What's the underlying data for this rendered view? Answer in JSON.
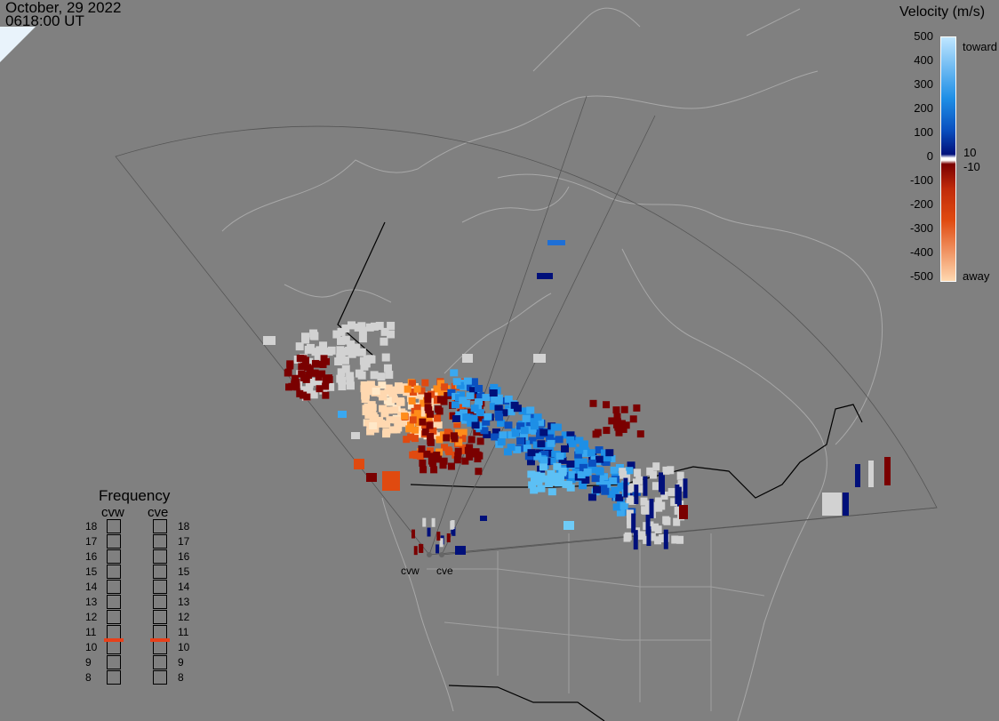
{
  "header": {
    "date": "October, 29 2022",
    "time": "0618:00 UT"
  },
  "colorscale": {
    "title": "Velocity (m/s)",
    "ticks": [
      "500",
      "400",
      "300",
      "200",
      "100",
      "0",
      "-100",
      "-200",
      "-300",
      "-400",
      "-500"
    ],
    "toward_label": "toward",
    "away_label": "away",
    "pos_threshold": "10",
    "neg_threshold": "-10",
    "colors": {
      "toward_light": "#bfe6ff",
      "toward_mid": "#1e8fe6",
      "toward_dark": "#00107a",
      "zero": "#ffffff",
      "away_dark": "#7a0000",
      "away_mid": "#e04a10",
      "away_light": "#ffd8b0",
      "ground_scatter": "#d2d2d2"
    }
  },
  "frequency": {
    "title": "Frequency",
    "radars": [
      {
        "name": "cvw",
        "selected_mhz": 10.5
      },
      {
        "name": "cve",
        "selected_mhz": 10.5
      }
    ],
    "scale": [
      "18",
      "17",
      "16",
      "15",
      "14",
      "13",
      "12",
      "11",
      "10",
      "9",
      "8"
    ]
  },
  "radar_sites": [
    "cvw",
    "cve"
  ]
}
